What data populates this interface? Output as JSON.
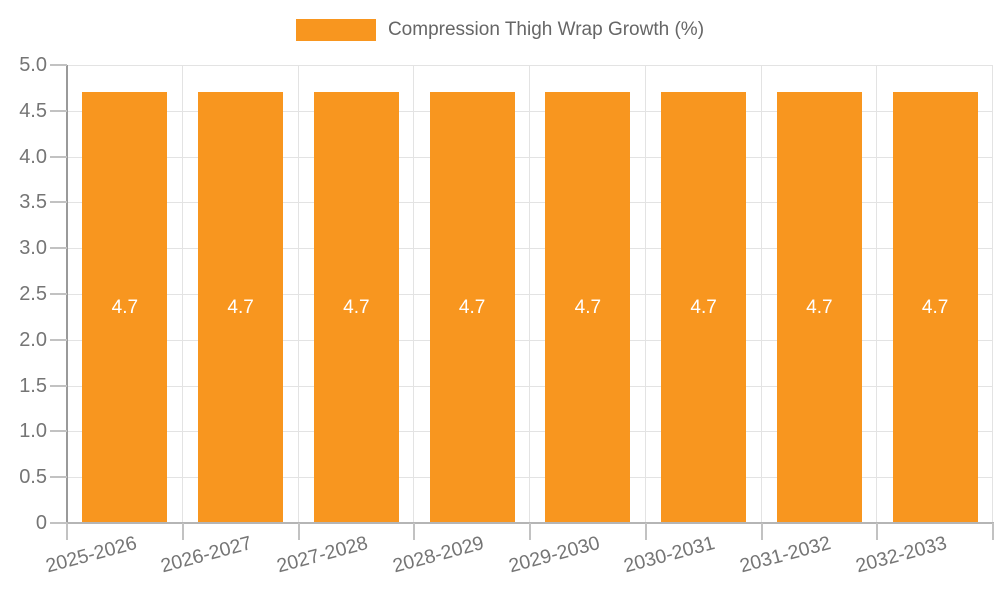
{
  "legend": {
    "label": "Compression Thigh Wrap Growth (%)"
  },
  "chart_data": {
    "type": "bar",
    "title": "",
    "categories": [
      "2025-2026",
      "2026-2027",
      "2027-2028",
      "2028-2029",
      "2029-2030",
      "2030-2031",
      "2031-2032",
      "2032-2033"
    ],
    "series": [
      {
        "name": "Compression Thigh Wrap Growth (%)",
        "values": [
          4.7,
          4.7,
          4.7,
          4.7,
          4.7,
          4.7,
          4.7,
          4.7
        ]
      }
    ],
    "bar_value_labels": [
      "4.7",
      "4.7",
      "4.7",
      "4.7",
      "4.7",
      "4.7",
      "4.7",
      "4.7"
    ],
    "xlabel": "",
    "ylabel": "",
    "ylim": [
      0,
      5
    ],
    "ytick_labels": [
      "0",
      "0.5",
      "1.0",
      "1.5",
      "2.0",
      "2.5",
      "3.0",
      "3.5",
      "4.0",
      "4.5",
      "5.0"
    ],
    "grid": true,
    "legend_position": "top-center"
  },
  "colors": {
    "bar": "#F8961F",
    "bar_value_text": "#FFFFFF",
    "grid_line": "#E3E3E3",
    "y_axis_line": "#9A9A9A",
    "x_axis_line": "#B5B5B5",
    "tick_mark": "#C2C2C2",
    "tick_label": "#757575",
    "legend_text": "#666666"
  }
}
